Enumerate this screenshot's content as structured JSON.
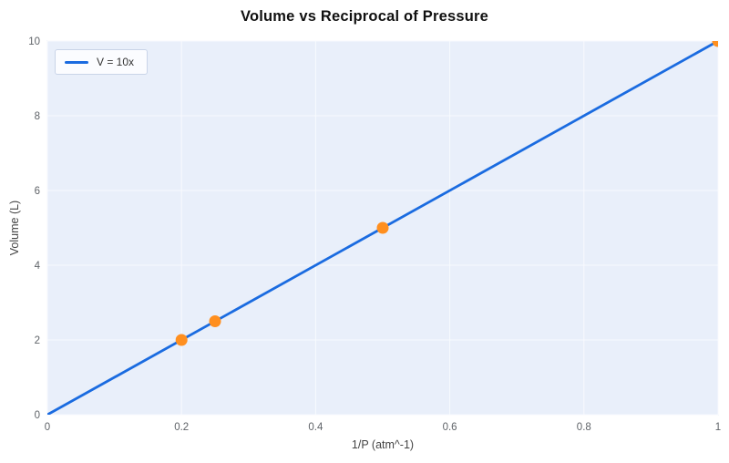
{
  "chart_data": {
    "type": "line",
    "title": "Volume vs Reciprocal of Pressure",
    "xlabel": "1/P (atm^-1)",
    "ylabel": "Volume (L)",
    "xlim": [
      0,
      1
    ],
    "ylim": [
      0,
      10
    ],
    "x_ticks": [
      0,
      0.2,
      0.4,
      0.6,
      0.8,
      1
    ],
    "y_ticks": [
      0,
      2,
      4,
      6,
      8,
      10
    ],
    "grid": true,
    "legend_position": "top-left",
    "series": [
      {
        "name": "V = 10x",
        "type": "line",
        "color": "#1a6be0",
        "x": [
          0,
          1
        ],
        "y": [
          0,
          10
        ]
      },
      {
        "type": "scatter",
        "color": "#ff8f1f",
        "x": [
          0.2,
          0.25,
          0.5,
          1
        ],
        "y": [
          2,
          2.5,
          5,
          10
        ]
      }
    ],
    "colors": {
      "plot_background": "#e9effa",
      "grid_line": "#f8fafe",
      "plot_border": "#d5deee",
      "axis_text": "#5f6368",
      "title_text": "#111111"
    }
  }
}
